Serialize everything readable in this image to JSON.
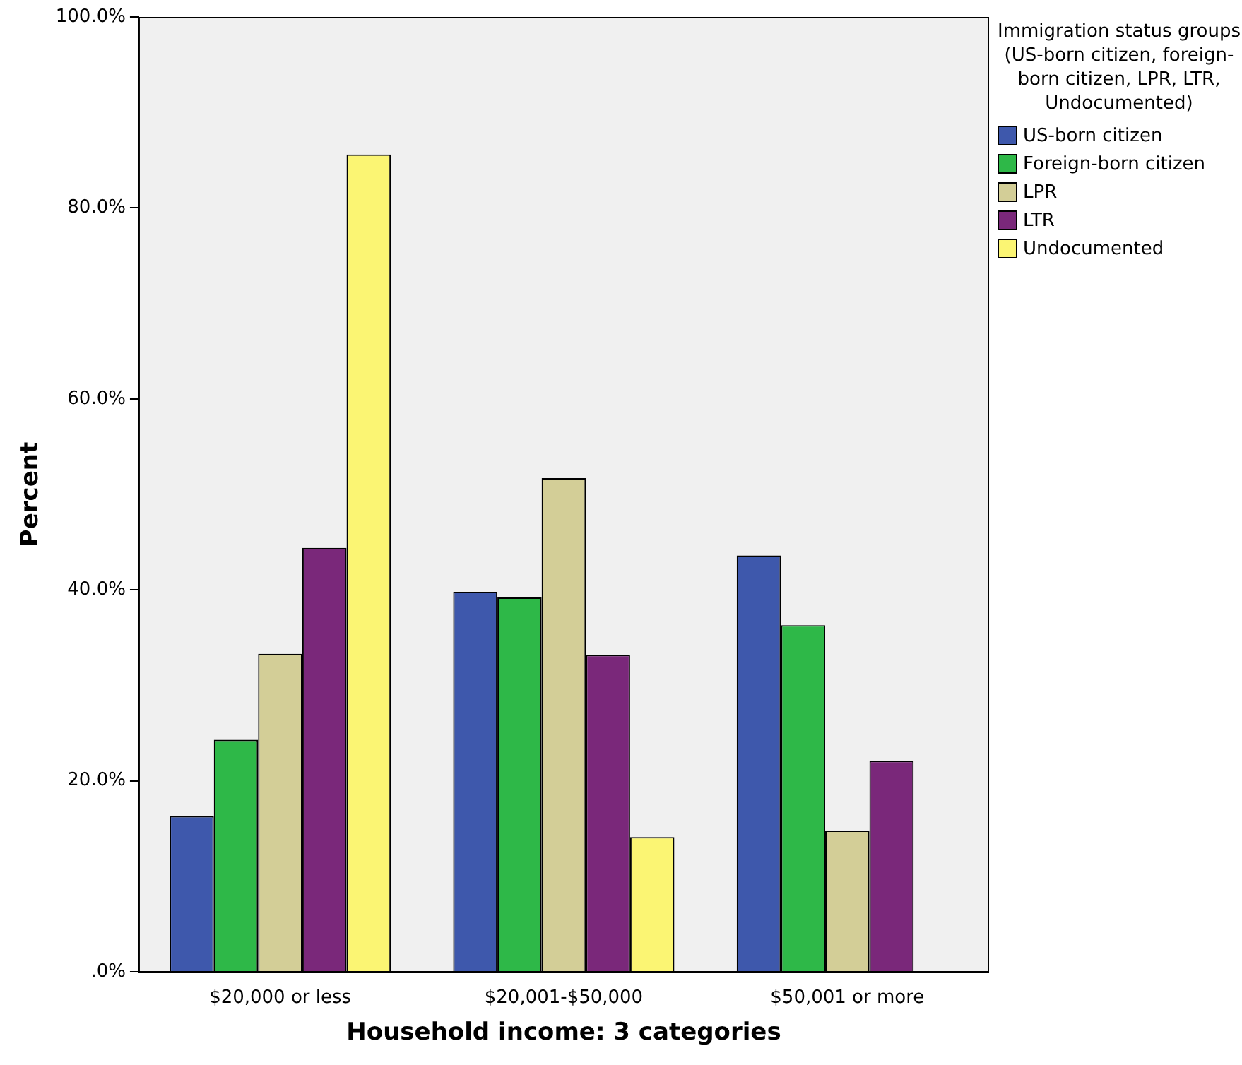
{
  "chart_data": {
    "type": "bar",
    "xlabel": "Household income: 3 categories",
    "ylabel": "Percent",
    "legend_title": "Immigration status groups (US-born citizen, foreign-born citizen, LPR, LTR, Undocumented)",
    "legend": "right",
    "grid": false,
    "categories": [
      "$20,000 or less",
      "$20,001-$50,000",
      "$50,001 or more"
    ],
    "ylim": [
      0,
      100
    ],
    "yticks": [
      {
        "value": 0,
        "label": ".0%"
      },
      {
        "value": 20,
        "label": "20.0%"
      },
      {
        "value": 40,
        "label": "40.0%"
      },
      {
        "value": 60,
        "label": "60.0%"
      },
      {
        "value": 80,
        "label": "80.0%"
      },
      {
        "value": 100,
        "label": "100.0%"
      }
    ],
    "series": [
      {
        "name": "US-born citizen",
        "color": "#3e58ac",
        "values": [
          16.3,
          39.8,
          43.6
        ]
      },
      {
        "name": "Foreign-born citizen",
        "color": "#2eb848",
        "values": [
          24.3,
          39.2,
          36.3
        ]
      },
      {
        "name": "LPR",
        "color": "#d3ce97",
        "values": [
          33.3,
          51.7,
          14.8
        ]
      },
      {
        "name": "LTR",
        "color": "#7a287a",
        "values": [
          44.4,
          33.2,
          22.1
        ]
      },
      {
        "name": "Undocumented",
        "color": "#fbf573",
        "values": [
          85.6,
          14.1,
          0
        ]
      }
    ]
  }
}
